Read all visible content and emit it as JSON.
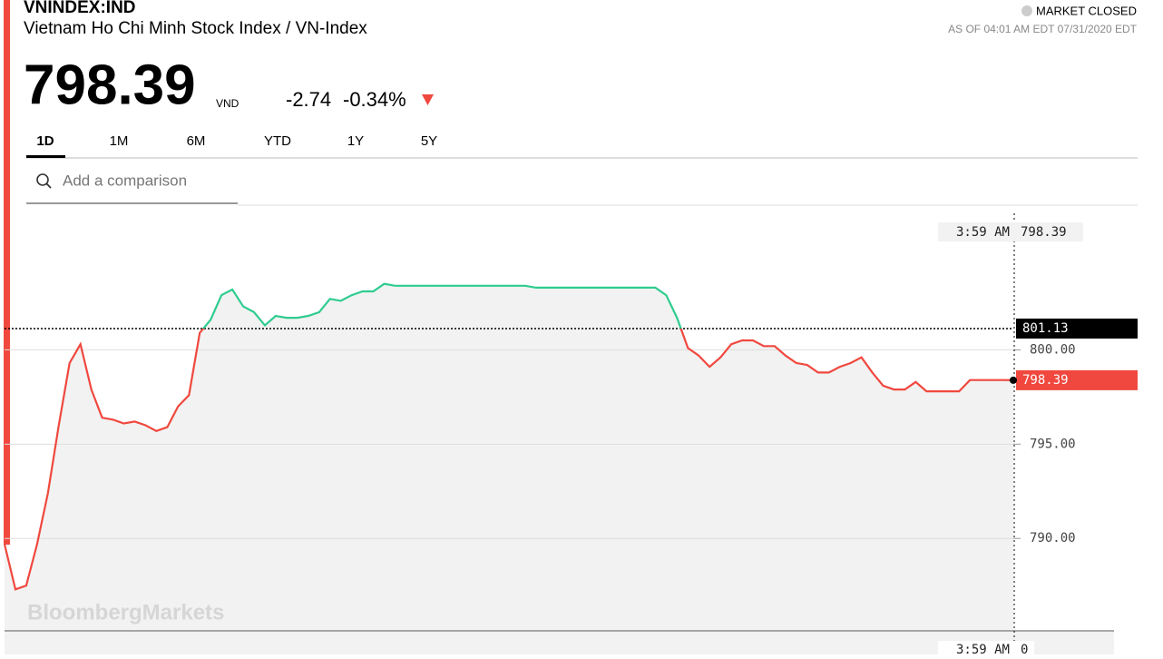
{
  "header": {
    "symbol": "VNINDEX:IND",
    "name": "Vietnam Ho Chi Minh Stock Index / VN-Index",
    "price": "798.39",
    "currency": "VND",
    "change": "-2.74",
    "change_percent": "-0.34%",
    "market_status": "MARKET CLOSED",
    "as_of": "AS OF 04:01 AM EDT 07/31/2020 EDT"
  },
  "tabs": {
    "items": [
      "1D",
      "1M",
      "6M",
      "YTD",
      "1Y",
      "5Y"
    ],
    "active": 0
  },
  "search": {
    "placeholder": "Add a comparison"
  },
  "watermark": "BloombergMarkets",
  "crosshair": {
    "time": "3:59 AM",
    "value": "798.39",
    "volume": "0"
  },
  "chart_data": {
    "type": "line",
    "values": [
      789.7,
      787.3,
      787.5,
      789.7,
      792.4,
      796.0,
      799.3,
      800.3,
      797.9,
      796.4,
      796.3,
      796.1,
      796.2,
      796.0,
      795.7,
      795.9,
      797.0,
      797.6,
      800.9,
      801.6,
      802.9,
      803.2,
      802.3,
      802.0,
      801.3,
      801.8,
      801.7,
      801.7,
      801.8,
      802.0,
      802.7,
      802.6,
      802.9,
      803.1,
      803.1,
      803.5,
      803.4,
      803.4,
      803.4,
      803.4,
      803.4,
      803.4,
      803.4,
      803.4,
      803.4,
      803.4,
      803.4,
      803.4,
      803.4,
      803.3,
      803.3,
      803.3,
      803.3,
      803.3,
      803.3,
      803.3,
      803.3,
      803.3,
      803.3,
      803.3,
      803.3,
      802.9,
      801.7,
      800.1,
      799.7,
      799.1,
      799.6,
      800.3,
      800.5,
      800.5,
      800.2,
      800.2,
      799.7,
      799.3,
      799.2,
      798.8,
      798.8,
      799.1,
      799.3,
      799.6,
      798.8,
      798.1,
      797.9,
      797.9,
      798.3,
      797.8,
      797.8,
      797.8,
      797.8,
      798.4,
      798.4,
      798.4,
      798.4,
      798.39
    ],
    "prev_close": 801.13,
    "up_color": "#2ecc8f",
    "down_color": "#f0483e",
    "ylim": [
      785.1,
      807
    ],
    "yticks": [
      {
        "value": 790,
        "label": "790.00"
      },
      {
        "value": 795,
        "label": "795.00"
      },
      {
        "value": 800,
        "label": "800.00"
      }
    ],
    "grid": true
  }
}
